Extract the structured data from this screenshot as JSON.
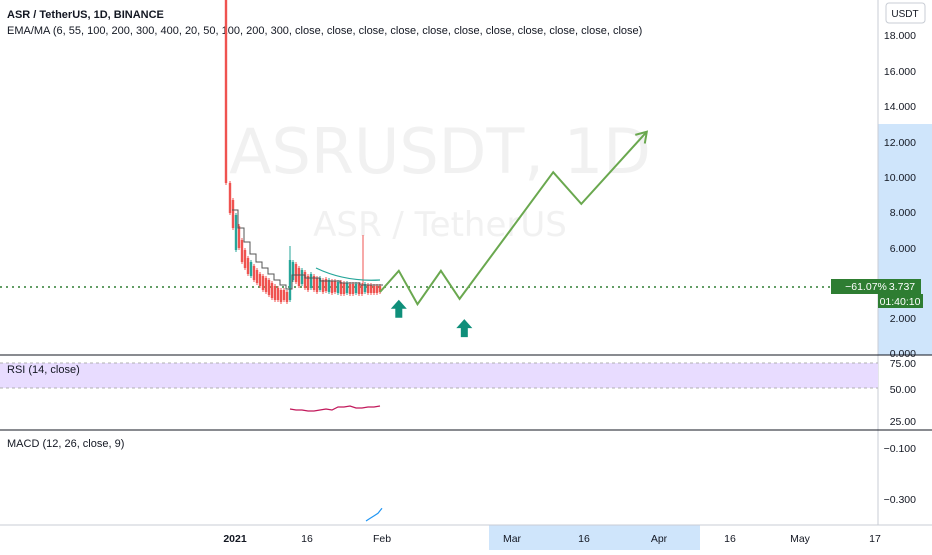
{
  "header": {
    "symbol_line": "ASR / TetherUS, 1D, BINANCE",
    "indicator_line": "EMA/MA (6, 55, 100, 200, 300, 400, 20, 50, 100, 200, 300, close, close, close, close, close, close, close, close, close, close, close)"
  },
  "watermark": {
    "ticker": "ASRUSDT, 1D",
    "pair": "ASR / TetherUS"
  },
  "price_axis": {
    "currency": "USDT",
    "ticks": [
      "18.000",
      "16.000",
      "14.000",
      "12.000",
      "10.000",
      "8.000",
      "6.000",
      "2.000",
      "0.000"
    ]
  },
  "last_price": {
    "change": "−61.07%",
    "price": "3.737",
    "countdown": "01:40:10"
  },
  "rsi": {
    "label": "RSI (14, close)",
    "ticks": [
      "75.00",
      "50.00",
      "25.00"
    ]
  },
  "macd": {
    "label": "MACD (12, 26, close, 9)",
    "ticks": [
      "−0.100",
      "−0.300"
    ]
  },
  "time_axis": {
    "labels": [
      "2021",
      "16",
      "Feb",
      "Mar",
      "16",
      "Apr",
      "16",
      "May",
      "17"
    ]
  },
  "colors": {
    "up": "#26a69a",
    "down": "#ef5350",
    "projection": "#6aa84f",
    "level_line": "#2e7d32",
    "rsi_band": "#e8dcff",
    "rsi_line": "#c2185b",
    "macd_line": "#2196f3",
    "arrow": "#0f8f7a",
    "axis_highlight": "#cfe5fb"
  },
  "chart_data": {
    "type": "candlestick",
    "title": "ASR / TetherUS, 1D, BINANCE",
    "y_range": [
      0,
      19.5
    ],
    "last_price": 3.737,
    "projection_path": [
      {
        "x": "2021-02-01",
        "y": 3.7
      },
      {
        "x": "2021-02-05",
        "y": 4.9
      },
      {
        "x": "2021-02-09",
        "y": 3.0
      },
      {
        "x": "2021-02-14",
        "y": 4.9
      },
      {
        "x": "2021-02-18",
        "y": 3.3
      },
      {
        "x": "2021-03-10",
        "y": 10.5
      },
      {
        "x": "2021-03-16",
        "y": 8.7
      },
      {
        "x": "2021-03-30",
        "y": 12.8
      }
    ],
    "arrows": [
      {
        "x": "2021-02-05",
        "y": 2.8
      },
      {
        "x": "2021-02-19",
        "y": 1.7
      }
    ],
    "rsi_values": [
      29,
      28,
      28,
      27,
      27,
      28,
      29,
      28,
      31,
      31,
      32,
      30,
      30,
      31,
      31,
      32
    ],
    "macd_values": [
      -0.39,
      -0.38,
      -0.37,
      -0.36,
      -0.34
    ]
  }
}
